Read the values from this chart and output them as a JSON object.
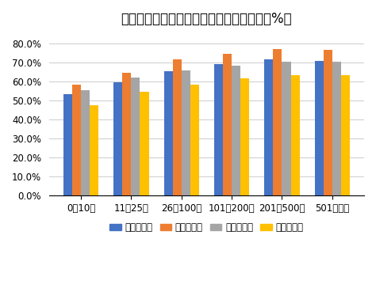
{
  "title": "家にある本の冊数／各教科の平均正答率（%）",
  "categories": [
    "0〜10冊",
    "11〜25冊",
    "26〜100冊",
    "101〜200冊",
    "201〜500冊",
    "501冊以上"
  ],
  "series": [
    {
      "label": "小学校国語",
      "color": "#4472C4",
      "values": [
        53.5,
        59.5,
        65.5,
        69.0,
        71.5,
        71.0
      ]
    },
    {
      "label": "小学校算数",
      "color": "#ED7D31",
      "values": [
        58.5,
        64.5,
        71.5,
        74.5,
        77.0,
        76.5
      ]
    },
    {
      "label": "中学校国語",
      "color": "#A5A5A5",
      "values": [
        55.5,
        62.0,
        66.0,
        68.5,
        70.5,
        70.5
      ]
    },
    {
      "label": "中学校数学",
      "color": "#FFC000",
      "values": [
        47.5,
        54.5,
        58.5,
        61.5,
        63.5,
        63.5
      ]
    }
  ],
  "ylim": [
    0,
    85
  ],
  "yticks": [
    0.0,
    10.0,
    20.0,
    30.0,
    40.0,
    50.0,
    60.0,
    70.0,
    80.0
  ],
  "background_color": "#FFFFFF",
  "title_fontsize": 12,
  "legend_fontsize": 8.5,
  "tick_fontsize": 8.5
}
